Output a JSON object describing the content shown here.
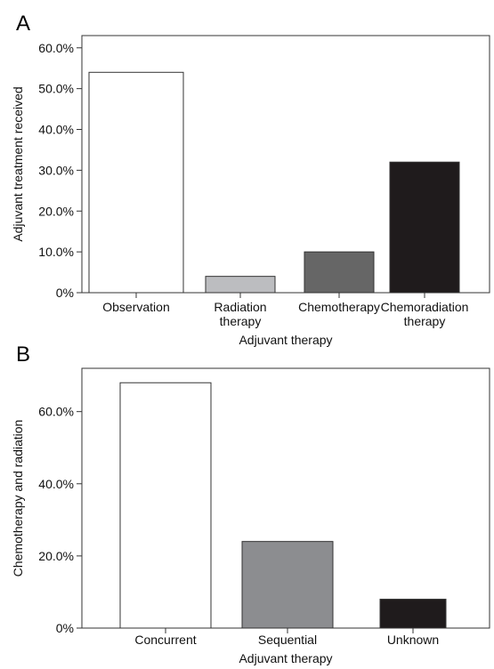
{
  "panel_labels": [
    "A",
    "B"
  ],
  "chart_data": [
    {
      "type": "bar",
      "panel": "A",
      "categories": [
        [
          "Observation"
        ],
        [
          "Radiation",
          "therapy"
        ],
        [
          "Chemotherapy"
        ],
        [
          "Chemoradiation",
          "therapy"
        ]
      ],
      "values": [
        54.0,
        4.0,
        10.0,
        32.0
      ],
      "colors": [
        "#ffffff",
        "#bcbdc0",
        "#666666",
        "#1f1b1c"
      ],
      "xlabel": "Adjuvant therapy",
      "ylabel": "Adjuvant treatment received",
      "ylim": [
        0,
        63
      ],
      "yticks": [
        0,
        10,
        20,
        30,
        40,
        50,
        60
      ],
      "ytick_labels": [
        "0%",
        "10.0%",
        "20.0%",
        "30.0%",
        "40.0%",
        "50.0%",
        "60.0%"
      ],
      "grid": false
    },
    {
      "type": "bar",
      "panel": "B",
      "categories": [
        [
          "Concurrent"
        ],
        [
          "Sequential"
        ],
        [
          "Unknown"
        ]
      ],
      "values": [
        68.0,
        24.0,
        8.0
      ],
      "colors": [
        "#ffffff",
        "#8c8d90",
        "#1f1b1c"
      ],
      "xlabel": "Adjuvant therapy",
      "ylabel": "Chemotherapy and radiation",
      "ylim": [
        0,
        72
      ],
      "yticks": [
        0,
        20,
        40,
        60
      ],
      "ytick_labels": [
        "0%",
        "20.0%",
        "40.0%",
        "60.0%"
      ],
      "grid": false
    }
  ]
}
